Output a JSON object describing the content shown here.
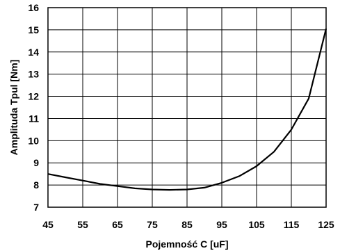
{
  "chart_data": {
    "type": "line",
    "xlabel": "Pojemność C [uF]",
    "ylabel": "Amplituda Tpul [Nm]",
    "xlim": [
      45,
      125
    ],
    "ylim": [
      7,
      16
    ],
    "x_ticks": [
      45,
      55,
      65,
      75,
      85,
      95,
      105,
      115,
      125
    ],
    "y_ticks": [
      7,
      8,
      9,
      10,
      11,
      12,
      13,
      14,
      15,
      16
    ],
    "grid": true,
    "series": [
      {
        "x": [
          45,
          50,
          55,
          60,
          65,
          70,
          75,
          80,
          85,
          90,
          95,
          100,
          105,
          110,
          115,
          120,
          125
        ],
        "y": [
          8.5,
          8.35,
          8.2,
          8.05,
          7.95,
          7.85,
          7.8,
          7.78,
          7.8,
          7.88,
          8.1,
          8.4,
          8.85,
          9.5,
          10.5,
          11.9,
          15.05
        ]
      }
    ]
  }
}
